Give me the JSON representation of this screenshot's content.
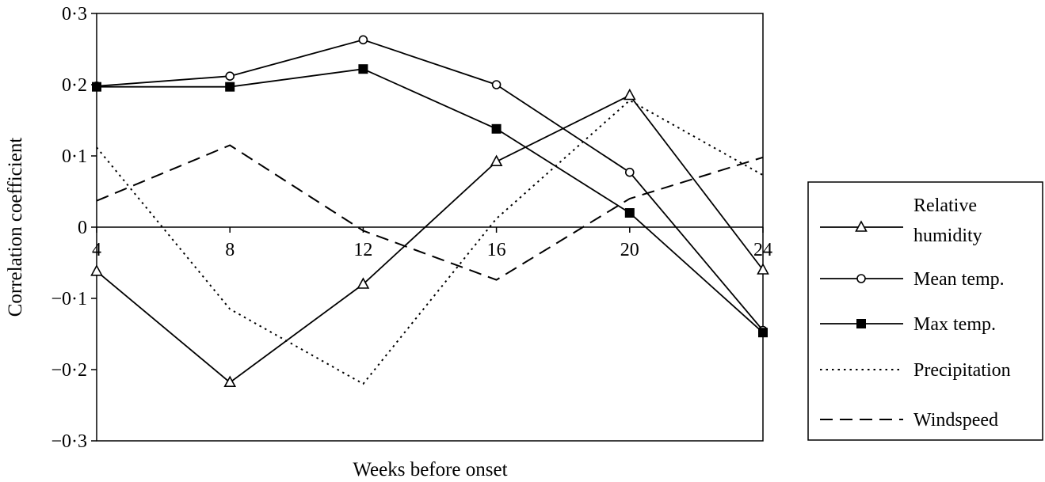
{
  "chart_data": {
    "type": "line",
    "xlabel": "Weeks before onset",
    "ylabel": "Correlation coefficient",
    "x": [
      4,
      8,
      12,
      16,
      20,
      24
    ],
    "xlim": [
      4,
      24
    ],
    "ylim": [
      -0.3,
      0.3
    ],
    "y_ticks": [
      0.3,
      0.2,
      0.1,
      0,
      -0.1,
      -0.2,
      -0.3
    ],
    "y_tick_labels": [
      "0·3",
      "0·2",
      "0·1",
      "0",
      "−0·1",
      "−0·2",
      "−0·3"
    ],
    "x_tick_labels": [
      "4",
      "8",
      "12",
      "16",
      "20",
      "24"
    ],
    "grid": false,
    "legend_position": "right",
    "series": [
      {
        "name": "Relative humidity",
        "values": [
          -0.062,
          -0.218,
          -0.08,
          0.092,
          0.185,
          -0.06
        ],
        "style": "solid",
        "marker": "triangle-open"
      },
      {
        "name": "Mean temp.",
        "values": [
          0.198,
          0.212,
          0.263,
          0.2,
          0.077,
          -0.145
        ],
        "style": "solid",
        "marker": "circle-open"
      },
      {
        "name": "Max temp.",
        "values": [
          0.197,
          0.197,
          0.222,
          0.138,
          0.02,
          -0.148
        ],
        "style": "solid",
        "marker": "square-filled"
      },
      {
        "name": "Precipitation",
        "values": [
          0.112,
          -0.115,
          -0.22,
          0.012,
          0.178,
          0.073
        ],
        "style": "dotted",
        "marker": "none"
      },
      {
        "name": "Windspeed",
        "values": [
          0.037,
          0.115,
          -0.005,
          -0.074,
          0.04,
          0.098
        ],
        "style": "dashed",
        "marker": "none"
      }
    ]
  }
}
